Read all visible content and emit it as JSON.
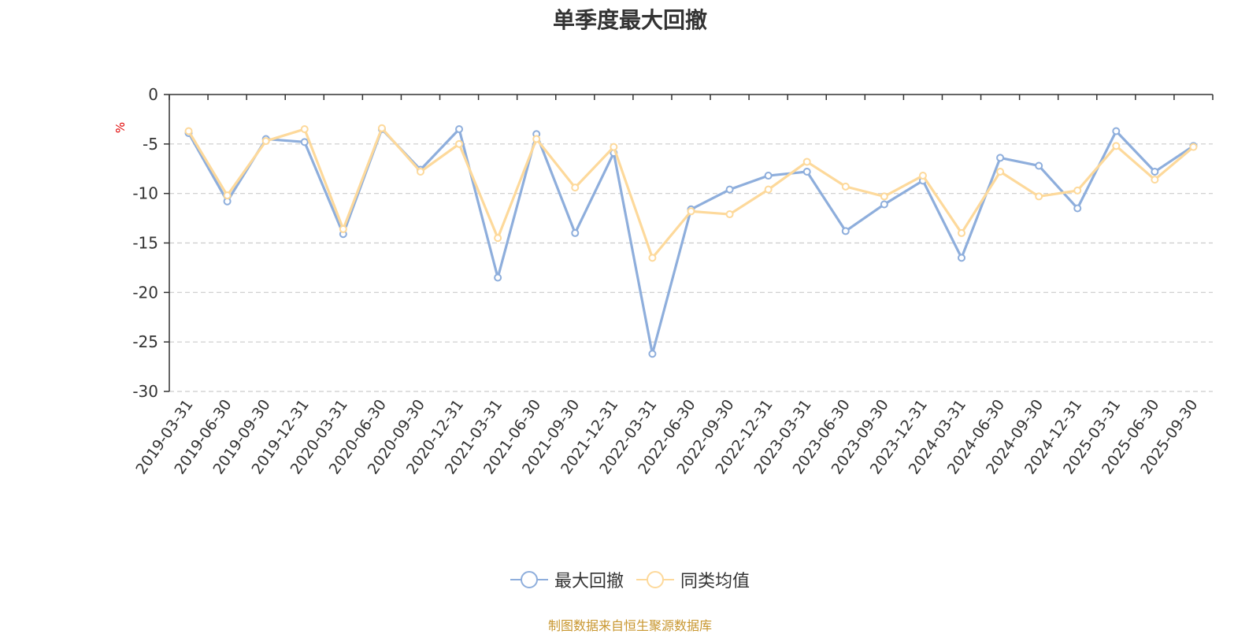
{
  "chart_data": {
    "type": "line",
    "title": "单季度最大回撤",
    "ylabel": "%",
    "ylim": [
      -30,
      0
    ],
    "yticks": [
      0,
      -5,
      -10,
      -15,
      -20,
      -25,
      -30
    ],
    "grid": true,
    "legend_position": "bottom",
    "categories": [
      "2019-03-31",
      "2019-06-30",
      "2019-09-30",
      "2019-12-31",
      "2020-03-31",
      "2020-06-30",
      "2020-09-30",
      "2020-12-31",
      "2021-03-31",
      "2021-06-30",
      "2021-09-30",
      "2021-12-31",
      "2022-03-31",
      "2022-06-30",
      "2022-09-30",
      "2022-12-31",
      "2023-03-31",
      "2023-06-30",
      "2023-09-30",
      "2023-12-31",
      "2024-03-31",
      "2024-06-30",
      "2024-09-30",
      "2024-12-31",
      "2025-03-31",
      "2025-06-30",
      "2025-09-30"
    ],
    "series": [
      {
        "name": "最大回撤",
        "color": "#8eaedc",
        "values": [
          -3.9,
          -10.8,
          -4.5,
          -4.8,
          -14.1,
          -3.5,
          -7.6,
          -3.5,
          -18.5,
          -4.0,
          -14.0,
          -5.9,
          -26.2,
          -11.6,
          -9.6,
          -8.2,
          -7.8,
          -13.8,
          -11.1,
          -8.7,
          -16.5,
          -6.4,
          -7.2,
          -11.5,
          -3.7,
          -7.8,
          -5.2
        ]
      },
      {
        "name": "同类均值",
        "color": "#fdd99b",
        "values": [
          -3.7,
          -10.2,
          -4.7,
          -3.5,
          -13.6,
          -3.4,
          -7.8,
          -5.0,
          -14.5,
          -4.5,
          -9.4,
          -5.3,
          -16.5,
          -11.8,
          -12.1,
          -9.6,
          -6.8,
          -9.3,
          -10.3,
          -8.2,
          -14.0,
          -7.8,
          -10.3,
          -9.7,
          -5.2,
          -8.6,
          -5.3
        ]
      }
    ]
  },
  "source": "制图数据来自恒生聚源数据库"
}
